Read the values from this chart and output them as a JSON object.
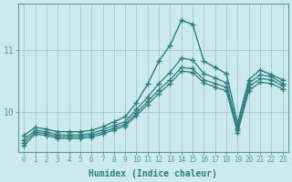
{
  "xlabel": "Humidex (Indice chaleur)",
  "bg_color": "#cceaed",
  "line_color": "#2e7d7d",
  "grid_color": "#aacdd1",
  "xlim": [
    -0.5,
    23.5
  ],
  "ylim": [
    9.35,
    11.75
  ],
  "yticks": [
    10,
    11
  ],
  "xticks": [
    0,
    1,
    2,
    3,
    4,
    5,
    6,
    7,
    8,
    9,
    10,
    11,
    12,
    13,
    14,
    15,
    16,
    17,
    18,
    19,
    20,
    21,
    22,
    23
  ],
  "line1_x": [
    0,
    1,
    2,
    3,
    4,
    5,
    6,
    7,
    8,
    9,
    10,
    11,
    12,
    13,
    14,
    15,
    16,
    17,
    18,
    19,
    20,
    21,
    22,
    23
  ],
  "line1_y": [
    9.62,
    9.75,
    9.72,
    9.68,
    9.68,
    9.68,
    9.7,
    9.76,
    9.84,
    9.92,
    10.15,
    10.45,
    10.82,
    11.08,
    11.48,
    11.42,
    10.82,
    10.72,
    10.62,
    9.82,
    10.52,
    10.68,
    10.6,
    10.52
  ],
  "line2_x": [
    0,
    1,
    2,
    3,
    4,
    5,
    6,
    7,
    8,
    9,
    10,
    11,
    12,
    13,
    14,
    15,
    16,
    17,
    18,
    19,
    20,
    21,
    22,
    23
  ],
  "line2_y": [
    9.55,
    9.7,
    9.68,
    9.63,
    9.63,
    9.63,
    9.65,
    9.71,
    9.78,
    9.84,
    10.04,
    10.24,
    10.46,
    10.64,
    10.87,
    10.84,
    10.62,
    10.55,
    10.47,
    9.74,
    10.46,
    10.6,
    10.57,
    10.46
  ],
  "line3_x": [
    0,
    1,
    2,
    3,
    4,
    5,
    6,
    7,
    8,
    9,
    10,
    11,
    12,
    13,
    14,
    15,
    16,
    17,
    18,
    19,
    20,
    21,
    22,
    23
  ],
  "line3_y": [
    9.5,
    9.67,
    9.65,
    9.6,
    9.6,
    9.6,
    9.62,
    9.67,
    9.74,
    9.8,
    9.98,
    10.17,
    10.36,
    10.52,
    10.72,
    10.7,
    10.52,
    10.46,
    10.4,
    9.7,
    10.4,
    10.54,
    10.52,
    10.42
  ],
  "line4_x": [
    0,
    1,
    2,
    3,
    4,
    5,
    6,
    7,
    8,
    9,
    10,
    11,
    12,
    13,
    14,
    15,
    16,
    17,
    18,
    19,
    20,
    21,
    22,
    23
  ],
  "line4_y": [
    9.45,
    9.64,
    9.62,
    9.57,
    9.57,
    9.57,
    9.59,
    9.64,
    9.71,
    9.77,
    9.94,
    10.12,
    10.3,
    10.46,
    10.66,
    10.64,
    10.47,
    10.4,
    10.34,
    9.66,
    10.34,
    10.48,
    10.46,
    10.37
  ]
}
